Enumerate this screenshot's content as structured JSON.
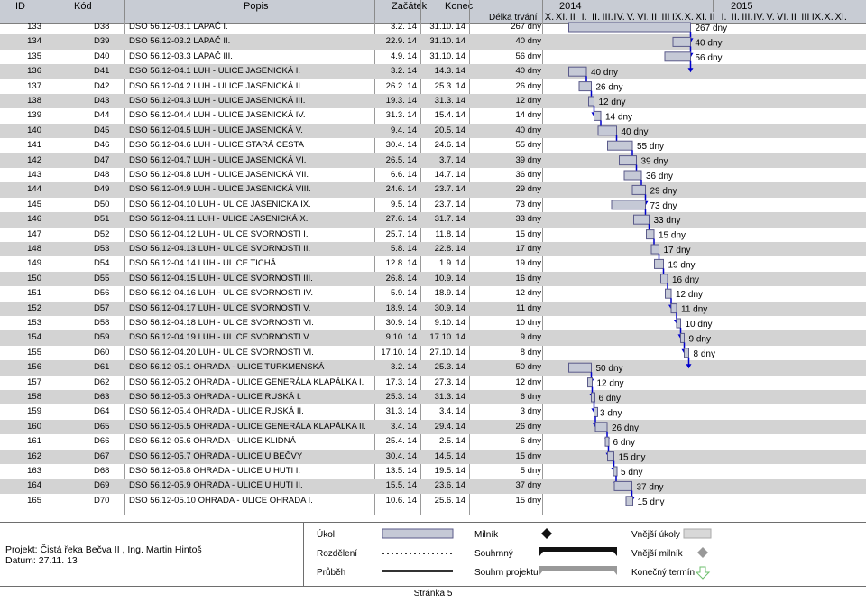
{
  "header": {
    "col_id": "ID",
    "col_kod": "Kód",
    "col_popis": "Popis",
    "col_start": "Začátek",
    "col_end": "Konec",
    "col_dur": "Délka trvání",
    "year1": "2014",
    "year2": "2015",
    "months": [
      "X.",
      "XI.",
      "II",
      "I.",
      "II.",
      "III.",
      "IV.",
      "V.",
      "VI.",
      "II",
      "III",
      "IX.",
      "X.",
      "XI.",
      "II",
      "I.",
      "II.",
      "III.",
      "IV.",
      "V.",
      "VI.",
      "II",
      "III",
      "IX.",
      "X.",
      "XI."
    ]
  },
  "rows": [
    {
      "id": "133",
      "kod": "D38",
      "popis": "DSO 56.12-03.1 LAPAČ I.",
      "start": "3.2. 14",
      "end": "31.10. 14",
      "dur": "267 dny"
    },
    {
      "id": "134",
      "kod": "D39",
      "popis": "DSO 56.12-03.2 LAPAČ II.",
      "start": "22.9. 14",
      "end": "31.10. 14",
      "dur": "40 dny"
    },
    {
      "id": "135",
      "kod": "D40",
      "popis": "DSO 56.12-03.3 LAPAČ III.",
      "start": "4.9. 14",
      "end": "31.10. 14",
      "dur": "56 dny"
    },
    {
      "id": "136",
      "kod": "D41",
      "popis": "DSO 56.12-04.1 LUH - ULICE JASENICKÁ I.",
      "start": "3.2. 14",
      "end": "14.3. 14",
      "dur": "40 dny"
    },
    {
      "id": "137",
      "kod": "D42",
      "popis": "DSO 56.12-04.2 LUH - ULICE JASENICKÁ II.",
      "start": "26.2. 14",
      "end": "25.3. 14",
      "dur": "26 dny"
    },
    {
      "id": "138",
      "kod": "D43",
      "popis": "DSO 56.12-04.3 LUH - ULICE JASENICKÁ III.",
      "start": "19.3. 14",
      "end": "31.3. 14",
      "dur": "12 dny"
    },
    {
      "id": "139",
      "kod": "D44",
      "popis": "DSO 56.12-04.4 LUH - ULICE JASENICKÁ IV.",
      "start": "31.3. 14",
      "end": "15.4. 14",
      "dur": "14 dny"
    },
    {
      "id": "140",
      "kod": "D45",
      "popis": "DSO 56.12-04.5 LUH - ULICE JASENICKÁ V.",
      "start": "9.4. 14",
      "end": "20.5. 14",
      "dur": "40 dny"
    },
    {
      "id": "141",
      "kod": "D46",
      "popis": "DSO 56.12-04.6 LUH - ULICE STARÁ CESTA",
      "start": "30.4. 14",
      "end": "24.6. 14",
      "dur": "55 dny"
    },
    {
      "id": "142",
      "kod": "D47",
      "popis": "DSO 56.12-04.7 LUH - ULICE JASENICKÁ VI.",
      "start": "26.5. 14",
      "end": "3.7. 14",
      "dur": "39 dny"
    },
    {
      "id": "143",
      "kod": "D48",
      "popis": "DSO 56.12-04.8 LUH - ULICE JASENICKÁ VII.",
      "start": "6.6. 14",
      "end": "14.7. 14",
      "dur": "36 dny"
    },
    {
      "id": "144",
      "kod": "D49",
      "popis": "DSO 56.12-04.9 LUH - ULICE JASENICKÁ VIII.",
      "start": "24.6. 14",
      "end": "23.7. 14",
      "dur": "29 dny"
    },
    {
      "id": "145",
      "kod": "D50",
      "popis": "DSO 56.12-04.10 LUH - ULICE JASENICKÁ IX.",
      "start": "9.5. 14",
      "end": "23.7. 14",
      "dur": "73 dny"
    },
    {
      "id": "146",
      "kod": "D51",
      "popis": "DSO 56.12-04.11 LUH - ULICE JASENICKÁ X.",
      "start": "27.6. 14",
      "end": "31.7. 14",
      "dur": "33 dny"
    },
    {
      "id": "147",
      "kod": "D52",
      "popis": "DSO 56.12-04.12 LUH - ULICE SVORNOSTI I.",
      "start": "25.7. 14",
      "end": "11.8. 14",
      "dur": "15 dny"
    },
    {
      "id": "148",
      "kod": "D53",
      "popis": "DSO 56.12-04.13 LUH - ULICE SVORNOSTI II.",
      "start": "5.8. 14",
      "end": "22.8. 14",
      "dur": "17 dny"
    },
    {
      "id": "149",
      "kod": "D54",
      "popis": "DSO 56.12-04.14 LUH - ULICE TICHÁ",
      "start": "12.8. 14",
      "end": "1.9. 14",
      "dur": "19 dny"
    },
    {
      "id": "150",
      "kod": "D55",
      "popis": "DSO 56.12-04.15 LUH - ULICE SVORNOSTI III.",
      "start": "26.8. 14",
      "end": "10.9. 14",
      "dur": "16 dny"
    },
    {
      "id": "151",
      "kod": "D56",
      "popis": "DSO 56.12-04.16 LUH - ULICE SVORNOSTI IV.",
      "start": "5.9. 14",
      "end": "18.9. 14",
      "dur": "12 dny"
    },
    {
      "id": "152",
      "kod": "D57",
      "popis": "DSO 56.12-04.17 LUH - ULICE SVORNOSTI V.",
      "start": "18.9. 14",
      "end": "30.9. 14",
      "dur": "11 dny"
    },
    {
      "id": "153",
      "kod": "D58",
      "popis": "DSO 56.12-04.18 LUH - ULICE SVORNOSTI VI.",
      "start": "30.9. 14",
      "end": "9.10. 14",
      "dur": "10 dny"
    },
    {
      "id": "154",
      "kod": "D59",
      "popis": "DSO 56.12-04.19 LUH - ULICE SVORNOSTI V.",
      "start": "9.10. 14",
      "end": "17.10. 14",
      "dur": "9 dny"
    },
    {
      "id": "155",
      "kod": "D60",
      "popis": "DSO 56.12-04.20 LUH - ULICE SVORNOSTI VI.",
      "start": "17.10. 14",
      "end": "27.10. 14",
      "dur": "8 dny"
    },
    {
      "id": "156",
      "kod": "D61",
      "popis": "DSO 56.12-05.1 OHRADA - ULICE TURKMENSKÁ",
      "start": "3.2. 14",
      "end": "25.3. 14",
      "dur": "50 dny"
    },
    {
      "id": "157",
      "kod": "D62",
      "popis": "DSO 56.12-05.2 OHRADA - ULICE GENERÁLA KLAPÁLKA I.",
      "start": "17.3. 14",
      "end": "27.3. 14",
      "dur": "12 dny"
    },
    {
      "id": "158",
      "kod": "D63",
      "popis": "DSO 56.12-05.3 OHRADA - ULICE RUSKÁ I.",
      "start": "25.3. 14",
      "end": "31.3. 14",
      "dur": "6 dny"
    },
    {
      "id": "159",
      "kod": "D64",
      "popis": "DSO 56.12-05.4 OHRADA - ULICE RUSKÁ II.",
      "start": "31.3. 14",
      "end": "3.4. 14",
      "dur": "3 dny"
    },
    {
      "id": "160",
      "kod": "D65",
      "popis": "DSO 56.12-05.5 OHRADA - ULICE GENERÁLA KLAPÁLKA II.",
      "start": "3.4. 14",
      "end": "29.4. 14",
      "dur": "26 dny"
    },
    {
      "id": "161",
      "kod": "D66",
      "popis": "DSO 56.12-05.6 OHRADA - ULICE KLIDNÁ",
      "start": "25.4. 14",
      "end": "2.5. 14",
      "dur": "6 dny"
    },
    {
      "id": "162",
      "kod": "D67",
      "popis": "DSO 56.12-05.7 OHRADA - ULICE U BEČVY",
      "start": "30.4. 14",
      "end": "14.5. 14",
      "dur": "15 dny"
    },
    {
      "id": "163",
      "kod": "D68",
      "popis": "DSO 56.12-05.8 OHRADA - ULICE U HUTI I.",
      "start": "13.5. 14",
      "end": "19.5. 14",
      "dur": "5 dny"
    },
    {
      "id": "164",
      "kod": "D69",
      "popis": "DSO 56.12-05.9 OHRADA - ULICE U HUTI II.",
      "start": "15.5. 14",
      "end": "23.6. 14",
      "dur": "37 dny"
    },
    {
      "id": "165",
      "kod": "D70",
      "popis": "DSO 56.12-05.10 OHRADA - ULICE OHRADA I.",
      "start": "10.6. 14",
      "end": "25.6. 14",
      "dur": "15 dny"
    }
  ],
  "legend": {
    "project_label": "Projekt: Čistá řeka Bečva II , Ing. Martin Hintoš",
    "date_label": "Datum: 27.11. 13",
    "ukol": "Úkol",
    "rozdeleni": "Rozdělení",
    "prubeh": "Průběh",
    "milnik": "Milník",
    "souhrnny": "Souhrnný",
    "souhrn_projektu": "Souhrn projektu",
    "vnejsi_ukoly": "Vnější úkoly",
    "vnejsi_milnik": "Vnější milník",
    "konecny_termin": "Konečný termín"
  },
  "footer": {
    "page": "Stránka 5"
  },
  "colors": {
    "header_bg": "#c8ccd4",
    "row_shade": "#d3d3d3",
    "task_bar": "#c5c9d6",
    "task_border": "#5a5a8a",
    "link_blue": "#0000cc"
  }
}
